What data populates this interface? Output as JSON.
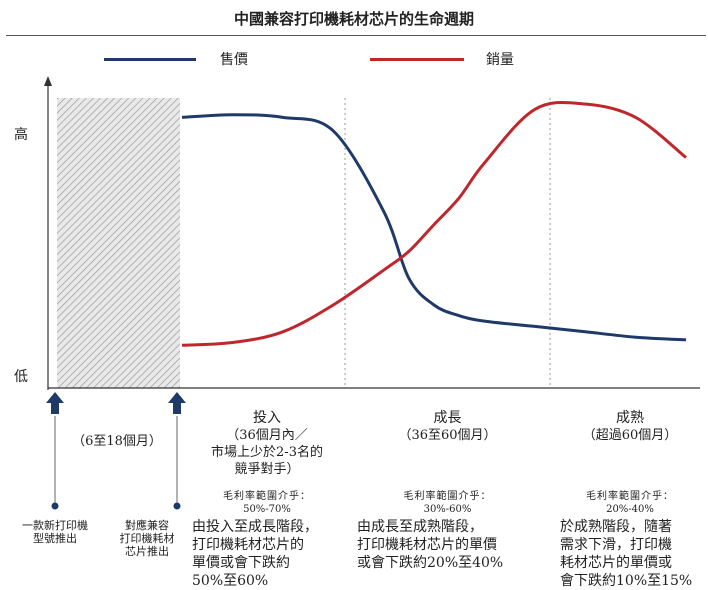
{
  "chart_data": {
    "type": "line",
    "title": "中國兼容打印機耗材芯片的生命週期",
    "ylabel_high": "高",
    "ylabel_low": "低",
    "series": [
      {
        "name": "售價",
        "color": "#1f3a68",
        "x": [
          0,
          10,
          20,
          30,
          40,
          45,
          50,
          55,
          60,
          70,
          80,
          90,
          100
        ],
        "values": [
          95,
          96,
          95,
          90,
          60,
          35,
          25,
          21,
          19,
          17,
          15,
          13,
          12
        ]
      },
      {
        "name": "銷量",
        "color": "#c0272d",
        "x": [
          0,
          10,
          20,
          30,
          40,
          45,
          50,
          55,
          60,
          70,
          80,
          90,
          100
        ],
        "values": [
          10,
          11,
          15,
          25,
          38,
          45,
          55,
          65,
          78,
          98,
          100,
          95,
          80
        ]
      }
    ],
    "stages": [
      {
        "name": "投入",
        "sub": [
          "（36個月內／",
          "市場上少於2-3名的",
          "競爭對手）"
        ],
        "margin_head": "毛利率範圍介乎：",
        "margin": "50%-70%",
        "desc": [
          "由投入至成長階段，",
          "打印機耗材芯片的",
          "單價或會下跌約",
          "50%至60%"
        ]
      },
      {
        "name": "成長",
        "sub": [
          "（36至60個月）"
        ],
        "margin_head": "毛利率範圍介乎：",
        "margin": "30%-60%",
        "desc": [
          "由成長至成熟階段，",
          "打印機耗材芯片的單價",
          "或會下跌約20%至40%"
        ]
      },
      {
        "name": "成熟",
        "sub": [
          "（超過60個月）"
        ],
        "margin_head": "毛利率範圍介乎：",
        "margin": "20%-40%",
        "desc": [
          "於成熟階段，隨著",
          "需求下滑，打印機",
          "耗材芯片的單價或",
          "會下跌約10%至15%"
        ]
      }
    ],
    "pre_period": "（6至18個月）",
    "markers": [
      {
        "label": [
          "一款新打印機",
          "型號推出"
        ]
      },
      {
        "label": [
          "對應兼容",
          "打印機耗材",
          "芯片推出"
        ]
      }
    ],
    "grid": false
  }
}
